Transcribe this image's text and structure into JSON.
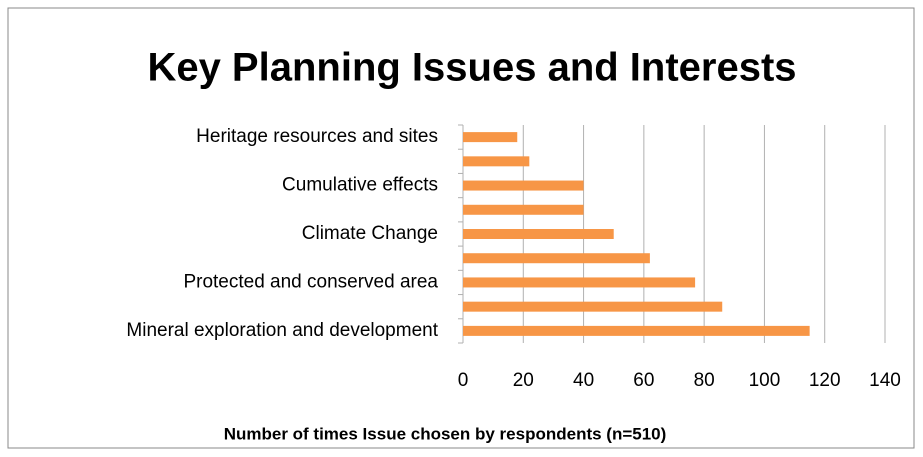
{
  "chart_data": {
    "type": "bar",
    "orientation": "horizontal",
    "title": "Key Planning Issues and Interests",
    "x_label": "Number of times Issue chosen by respondents (n=510)",
    "categories": [
      "Heritage resources and sites",
      null,
      "Cumulative effects",
      null,
      "Climate Change",
      null,
      "Protected and conserved area",
      null,
      "Mineral exploration and development"
    ],
    "values": [
      18,
      22,
      40,
      40,
      50,
      62,
      77,
      86,
      115
    ],
    "color": "#f79646",
    "xlim": [
      0,
      140
    ],
    "xticks": [
      0,
      20,
      40,
      60,
      80,
      100,
      120,
      140
    ],
    "grid": true
  }
}
